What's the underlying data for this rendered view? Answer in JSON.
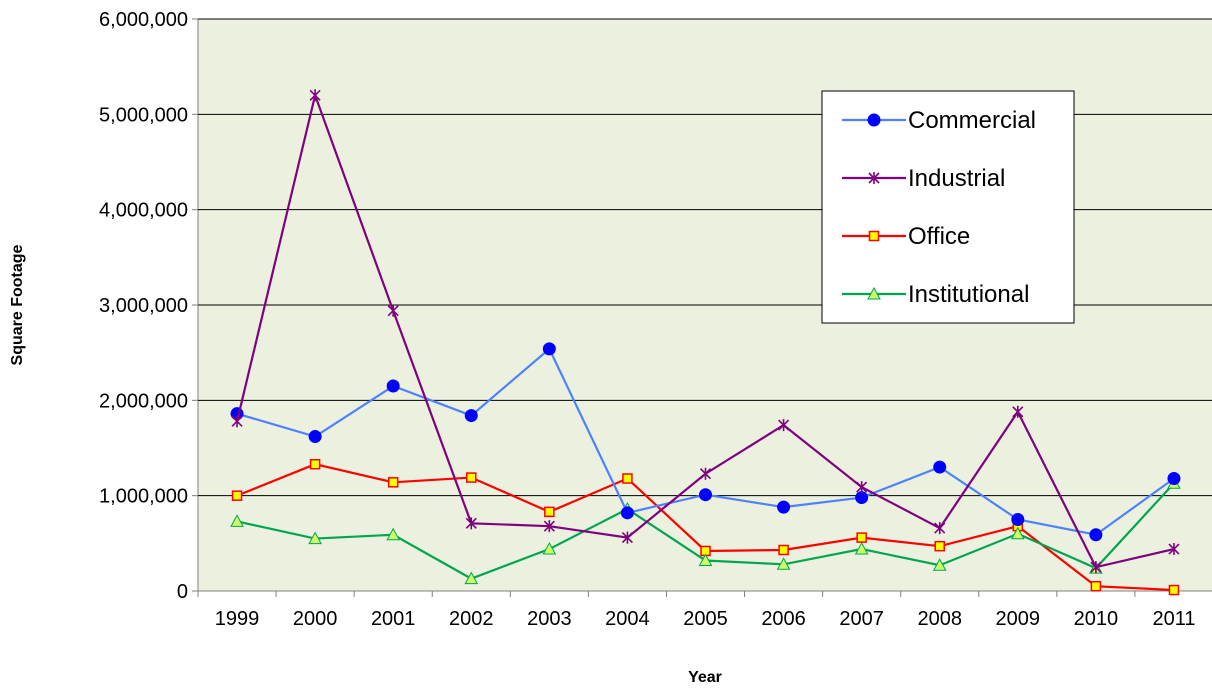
{
  "chart_data": {
    "type": "line",
    "title": "",
    "xlabel": "Year",
    "ylabel": "Square Footage",
    "categories": [
      "1999",
      "2000",
      "2001",
      "2002",
      "2003",
      "2004",
      "2005",
      "2006",
      "2007",
      "2008",
      "2009",
      "2010",
      "2011"
    ],
    "ylim": [
      0,
      6000000
    ],
    "yticks": [
      0,
      1000000,
      2000000,
      3000000,
      4000000,
      5000000,
      6000000
    ],
    "ytick_labels": [
      "0",
      "1,000,000",
      "2,000,000",
      "3,000,000",
      "4,000,000",
      "5,000,000",
      "6,000,000"
    ],
    "grid": "horizontal",
    "plot_background": "#EBF1DE",
    "legend_position": "top-right",
    "series": [
      {
        "name": "Commercial",
        "color": "#4F81FF",
        "marker_color": "#0000FF",
        "marker": "circle",
        "values": [
          1860000,
          1620000,
          2150000,
          1840000,
          2540000,
          820000,
          1010000,
          880000,
          980000,
          1300000,
          750000,
          590000,
          1180000
        ]
      },
      {
        "name": "Industrial",
        "color": "#800080",
        "marker_color": "#800080",
        "marker": "star",
        "values": [
          1780000,
          5200000,
          2940000,
          710000,
          680000,
          560000,
          1230000,
          1740000,
          1090000,
          660000,
          1880000,
          250000,
          440000
        ]
      },
      {
        "name": "Office",
        "color": "#FF0000",
        "marker_color": "#FFFF00",
        "marker": "square",
        "values": [
          1000000,
          1330000,
          1140000,
          1190000,
          830000,
          1180000,
          420000,
          430000,
          560000,
          470000,
          680000,
          50000,
          10000
        ]
      },
      {
        "name": "Institutional",
        "color": "#00A550",
        "marker_color": "#CCFF66",
        "marker": "triangle",
        "values": [
          730000,
          550000,
          590000,
          130000,
          440000,
          860000,
          320000,
          280000,
          440000,
          270000,
          600000,
          240000,
          1130000
        ]
      }
    ]
  }
}
